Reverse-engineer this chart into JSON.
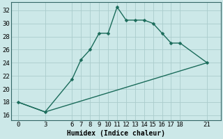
{
  "xlabel": "Humidex (Indice chaleur)",
  "background_color": "#cce8e8",
  "grid_color": "#aacccc",
  "line_color": "#1a6b5a",
  "x_ticks": [
    0,
    3,
    6,
    7,
    8,
    9,
    10,
    11,
    12,
    13,
    14,
    15,
    16,
    17,
    18,
    21
  ],
  "y_ticks": [
    16,
    18,
    20,
    22,
    24,
    26,
    28,
    30,
    32
  ],
  "ylim": [
    15.2,
    33.2
  ],
  "xlim": [
    -0.8,
    22.5
  ],
  "curve1_x": [
    0,
    3,
    6,
    7,
    8,
    9,
    10,
    11,
    12,
    13,
    14,
    15,
    16,
    17,
    18,
    21
  ],
  "curve1_y": [
    18,
    16.5,
    21.5,
    24.5,
    26,
    28.5,
    28.5,
    32.5,
    30.5,
    30.5,
    30.5,
    30,
    28.5,
    27,
    27,
    24
  ],
  "curve2_x": [
    0,
    3,
    21
  ],
  "curve2_y": [
    18,
    16.5,
    24
  ],
  "markersize": 2.5,
  "linewidth": 1.0,
  "fontsize_label": 7,
  "fontsize_tick": 6.5
}
